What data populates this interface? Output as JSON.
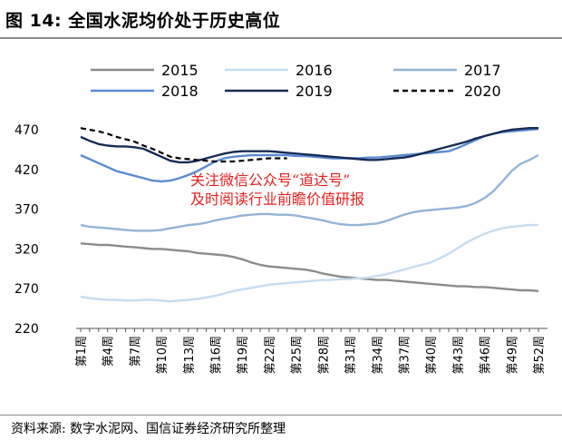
{
  "figure": {
    "title": "图 14: 全国水泥均价处于历史高位",
    "source": "资料来源: 数字水泥网、国信证券经济研究所整理",
    "watermark_line1": "关注微信公众号“道达号”",
    "watermark_line2": "及时阅读行业前瞻价值研报"
  },
  "chart_data": {
    "type": "line",
    "title": "全国水泥均价处于历史高位",
    "xlabel": "",
    "ylabel": "",
    "ylim": [
      220,
      480
    ],
    "yticks": [
      220,
      270,
      320,
      370,
      420,
      470
    ],
    "x_ticks": [
      "第1周",
      "第4周",
      "第7周",
      "第10周",
      "第13周",
      "第16周",
      "第19周",
      "第22周",
      "第25周",
      "第28周",
      "第31周",
      "第34周",
      "第37周",
      "第40周",
      "第43周",
      "第46周",
      "第49周",
      "第52周"
    ],
    "legend_position": "top",
    "series": [
      {
        "name": "2015",
        "color": "#8c8c8c",
        "dash": "solid",
        "values": [
          327,
          326,
          325,
          325,
          324,
          323,
          322,
          321,
          320,
          320,
          319,
          318,
          317,
          315,
          314,
          313,
          312,
          310,
          307,
          303,
          300,
          298,
          297,
          296,
          295,
          294,
          292,
          289,
          287,
          285,
          284,
          283,
          282,
          281,
          281,
          280,
          279,
          278,
          277,
          276,
          275,
          274,
          273,
          273,
          272,
          272,
          271,
          270,
          269,
          268,
          268,
          267
        ]
      },
      {
        "name": "2016",
        "color": "#c8dcf0",
        "dash": "solid",
        "values": [
          260,
          258,
          257,
          256,
          256,
          255,
          255,
          256,
          256,
          255,
          254,
          255,
          256,
          257,
          259,
          261,
          264,
          267,
          269,
          271,
          273,
          275,
          276,
          277,
          278,
          279,
          280,
          281,
          281,
          282,
          282,
          283,
          284,
          286,
          288,
          291,
          294,
          297,
          300,
          303,
          308,
          314,
          321,
          328,
          334,
          339,
          343,
          346,
          348,
          349,
          350,
          350
        ]
      },
      {
        "name": "2017",
        "color": "#93b4d6",
        "dash": "solid",
        "values": [
          350,
          348,
          347,
          346,
          345,
          344,
          343,
          343,
          343,
          344,
          346,
          348,
          350,
          351,
          353,
          356,
          358,
          360,
          362,
          363,
          364,
          364,
          363,
          363,
          362,
          360,
          358,
          356,
          353,
          351,
          350,
          350,
          351,
          352,
          355,
          359,
          363,
          366,
          368,
          369,
          370,
          371,
          372,
          374,
          378,
          384,
          393,
          405,
          418,
          427,
          432,
          438
        ]
      },
      {
        "name": "2018",
        "color": "#5a8bd2",
        "dash": "solid",
        "values": [
          438,
          433,
          428,
          423,
          418,
          415,
          412,
          409,
          406,
          405,
          406,
          409,
          413,
          418,
          424,
          430,
          434,
          436,
          437,
          438,
          438,
          438,
          438,
          438,
          437,
          437,
          436,
          435,
          434,
          434,
          434,
          434,
          435,
          435,
          436,
          437,
          438,
          439,
          440,
          441,
          442,
          443,
          447,
          452,
          457,
          462,
          465,
          467,
          468,
          469,
          470,
          471
        ]
      },
      {
        "name": "2019",
        "color": "#172c54",
        "dash": "solid",
        "values": [
          461,
          456,
          452,
          450,
          449,
          449,
          448,
          446,
          441,
          436,
          431,
          429,
          429,
          431,
          434,
          437,
          440,
          442,
          443,
          443,
          443,
          443,
          442,
          441,
          440,
          439,
          438,
          437,
          436,
          435,
          434,
          433,
          432,
          432,
          433,
          434,
          435,
          437,
          440,
          443,
          446,
          449,
          452,
          455,
          459,
          462,
          465,
          468,
          470,
          471,
          472,
          472
        ]
      },
      {
        "name": "2020",
        "color": "#000000",
        "dash": "dashed",
        "values": [
          472,
          470,
          468,
          465,
          461,
          458,
          455,
          450,
          446,
          441,
          436,
          434,
          433,
          432,
          431,
          430,
          430,
          430,
          431,
          432,
          433,
          434,
          434,
          434
        ]
      }
    ]
  }
}
